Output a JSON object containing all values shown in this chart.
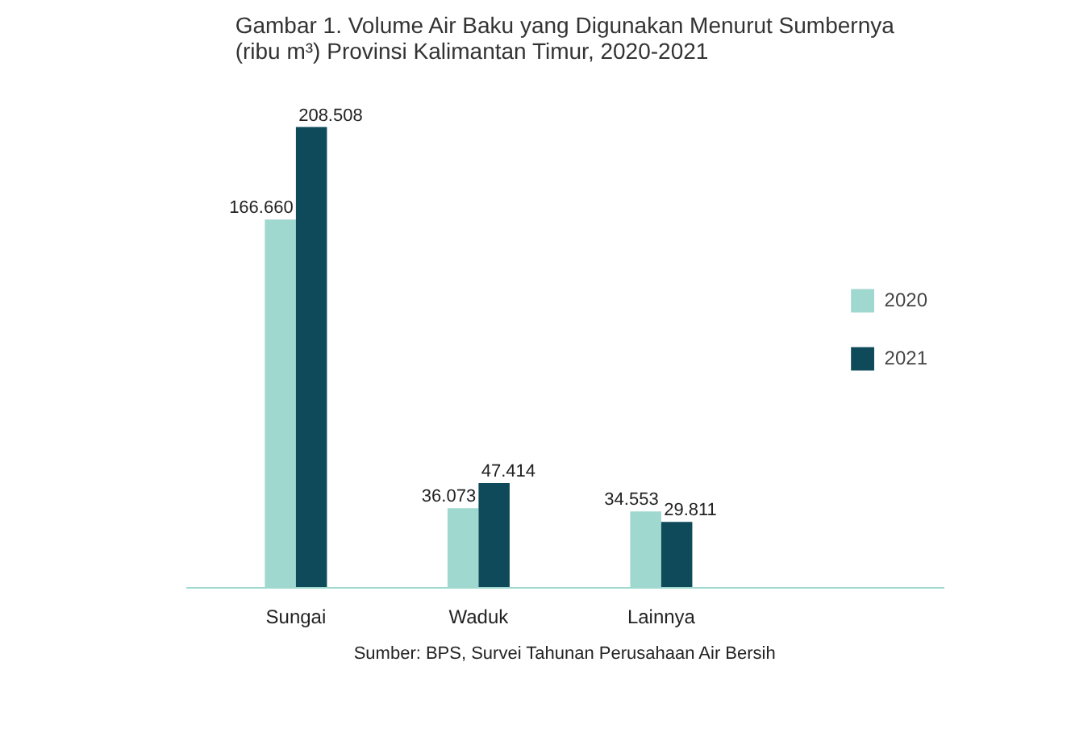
{
  "chart_data": {
    "type": "bar",
    "title": "Gambar 1. Volume Air Baku yang Digunakan Menurut Sumbernya (ribu m³) Provinsi Kalimantan Timur, 2020-2021",
    "categories": [
      "Sungai",
      "Waduk",
      "Lainnya"
    ],
    "series": [
      {
        "name": "2020",
        "color": "#9ed8cf",
        "values": [
          166660,
          36073,
          34553
        ],
        "value_labels": [
          "166.660",
          "36.073",
          "34.553"
        ]
      },
      {
        "name": "2021",
        "color": "#0e4a5a",
        "values": [
          208508,
          47414,
          29811
        ],
        "value_labels": [
          "208.508",
          "47.414",
          "29.811"
        ]
      }
    ],
    "legend": "right",
    "annotations": [
      "Sumber: BPS, Survei Tahunan Perusahaan Air Bersih"
    ]
  }
}
